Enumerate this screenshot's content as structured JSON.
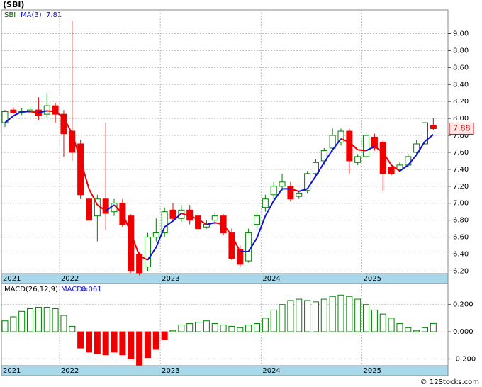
{
  "chart_data": [
    {
      "type": "candlestick",
      "title": "(SBI)",
      "symbol": "SBI",
      "categories": [
        "2021",
        null,
        null,
        null,
        null,
        null,
        null,
        "2022",
        null,
        null,
        null,
        null,
        null,
        null,
        null,
        null,
        null,
        null,
        null,
        "2023",
        null,
        null,
        null,
        null,
        null,
        null,
        null,
        null,
        null,
        null,
        null,
        "2024",
        null,
        null,
        null,
        null,
        null,
        null,
        null,
        null,
        null,
        null,
        null,
        "2025",
        null,
        null,
        null,
        null,
        null,
        null,
        null,
        null
      ],
      "open": [
        7.95,
        8.1,
        8.07,
        8.08,
        8.1,
        8.05,
        8.15,
        8.05,
        7.85,
        7.7,
        7.05,
        6.85,
        7.05,
        6.9,
        7.0,
        6.85,
        6.4,
        6.25,
        6.6,
        6.65,
        6.92,
        6.82,
        6.92,
        6.85,
        6.72,
        6.8,
        6.85,
        6.65,
        6.45,
        6.32,
        6.75,
        6.95,
        7.1,
        7.2,
        7.2,
        7.08,
        7.15,
        7.35,
        7.5,
        7.65,
        7.72,
        7.85,
        7.48,
        7.55,
        7.78,
        7.72,
        7.42,
        7.4,
        7.45,
        7.6,
        7.7,
        7.92
      ],
      "high": [
        8.1,
        8.13,
        8.12,
        8.15,
        8.25,
        8.3,
        8.18,
        8.1,
        9.15,
        7.75,
        7.1,
        7.1,
        7.95,
        7.05,
        7.05,
        6.87,
        6.42,
        6.65,
        6.82,
        6.95,
        7.0,
        6.98,
        6.98,
        6.88,
        6.8,
        6.88,
        6.87,
        6.7,
        6.5,
        6.7,
        6.9,
        7.1,
        7.25,
        7.35,
        7.25,
        7.15,
        7.38,
        7.52,
        7.65,
        7.88,
        7.88,
        7.88,
        7.58,
        7.82,
        7.82,
        7.75,
        7.45,
        7.48,
        7.58,
        7.75,
        7.98,
        8.0
      ],
      "low": [
        7.9,
        8.05,
        8.04,
        8.05,
        7.98,
        8.0,
        7.95,
        7.55,
        7.5,
        7.05,
        6.75,
        6.55,
        6.68,
        6.85,
        6.72,
        6.18,
        6.15,
        6.2,
        6.55,
        6.6,
        6.78,
        6.78,
        6.75,
        6.65,
        6.7,
        6.75,
        6.62,
        6.33,
        6.25,
        6.3,
        6.7,
        6.9,
        7.05,
        7.15,
        7.02,
        7.05,
        7.12,
        7.3,
        7.45,
        7.6,
        7.68,
        7.35,
        7.45,
        7.52,
        7.62,
        7.15,
        7.33,
        7.37,
        7.42,
        7.58,
        7.68,
        7.86
      ],
      "close": [
        8.08,
        8.07,
        8.08,
        8.1,
        8.03,
        8.15,
        8.05,
        7.82,
        7.6,
        7.1,
        6.8,
        7.05,
        6.88,
        7.0,
        6.75,
        6.2,
        6.18,
        6.6,
        6.65,
        6.9,
        6.82,
        6.92,
        6.8,
        6.7,
        6.75,
        6.85,
        6.65,
        6.35,
        6.28,
        6.65,
        6.85,
        7.05,
        7.2,
        7.25,
        7.05,
        7.12,
        7.35,
        7.48,
        7.62,
        7.8,
        7.85,
        7.5,
        7.55,
        7.8,
        7.65,
        7.35,
        7.35,
        7.45,
        7.55,
        7.7,
        7.95,
        7.88
      ],
      "up_color": "#008000",
      "down_color": "#ee0000",
      "series": [
        {
          "name": "MA(3)",
          "color": "#1010e0",
          "down_color": "#ee0000",
          "values": [
            7.95,
            8.03,
            8.08,
            8.08,
            8.07,
            8.09,
            8.08,
            8.01,
            7.82,
            7.51,
            7.17,
            6.98,
            6.91,
            6.98,
            6.88,
            6.65,
            6.38,
            6.33,
            6.48,
            6.72,
            6.79,
            6.88,
            6.85,
            6.81,
            6.75,
            6.77,
            6.75,
            6.62,
            6.43,
            6.43,
            6.59,
            6.85,
            7.03,
            7.17,
            7.17,
            7.14,
            7.17,
            7.32,
            7.48,
            7.63,
            7.76,
            7.72,
            7.63,
            7.62,
            7.67,
            7.6,
            7.45,
            7.38,
            7.45,
            7.57,
            7.73,
            7.81
          ]
        }
      ],
      "ylim": [
        6.17,
        9.28
      ],
      "yticks": [
        {
          "value": 6.2,
          "label": "6.20"
        },
        {
          "value": 6.4,
          "label": "6.40"
        },
        {
          "value": 6.6,
          "label": "6.60"
        },
        {
          "value": 6.8,
          "label": "6.80"
        },
        {
          "value": 7.0,
          "label": "7.00"
        },
        {
          "value": 7.2,
          "label": "7.20"
        },
        {
          "value": 7.4,
          "label": "7.40"
        },
        {
          "value": 7.6,
          "label": "7.60"
        },
        {
          "value": 7.8,
          "label": "7.80"
        },
        {
          "value": 8.0,
          "label": "8.00"
        },
        {
          "value": 8.2,
          "label": "8.20"
        },
        {
          "value": 8.4,
          "label": "8.40"
        },
        {
          "value": 8.6,
          "label": "8.60"
        },
        {
          "value": 8.8,
          "label": "8.80"
        },
        {
          "value": 9.0,
          "label": "9.00"
        }
      ],
      "grid": true
    },
    {
      "type": "bar",
      "title": "MACD(26,12,9)",
      "value_prefix": "MACD=",
      "categories": [
        "2021",
        null,
        null,
        null,
        null,
        null,
        null,
        "2022",
        null,
        null,
        null,
        null,
        null,
        null,
        null,
        null,
        null,
        null,
        null,
        "2023",
        null,
        null,
        null,
        null,
        null,
        null,
        null,
        null,
        null,
        null,
        null,
        "2024",
        null,
        null,
        null,
        null,
        null,
        null,
        null,
        null,
        null,
        null,
        null,
        "2025",
        null,
        null,
        null,
        null,
        null,
        null,
        null,
        null
      ],
      "values": [
        0.08,
        0.11,
        0.15,
        0.17,
        0.18,
        0.18,
        0.17,
        0.12,
        0.04,
        -0.12,
        -0.15,
        -0.16,
        -0.17,
        -0.15,
        -0.17,
        -0.2,
        -0.245,
        -0.19,
        -0.13,
        -0.06,
        0.01,
        0.05,
        0.06,
        0.07,
        0.08,
        0.06,
        0.05,
        0.04,
        0.03,
        0.05,
        0.06,
        0.1,
        0.16,
        0.2,
        0.23,
        0.24,
        0.23,
        0.22,
        0.24,
        0.26,
        0.27,
        0.26,
        0.24,
        0.2,
        0.16,
        0.13,
        0.1,
        0.06,
        0.03,
        0.01,
        0.03,
        0.061
      ],
      "color": "#008000",
      "negative_color": "#ee0000",
      "ylim": [
        -0.25,
        0.355
      ],
      "yticks": [
        {
          "value": -0.2,
          "label": "-0.200"
        },
        {
          "value": 0,
          "label": "0.000"
        },
        {
          "value": 0.2,
          "label": "0.200"
        }
      ],
      "grid": true
    }
  ],
  "footer": "© 12Stocks.com"
}
